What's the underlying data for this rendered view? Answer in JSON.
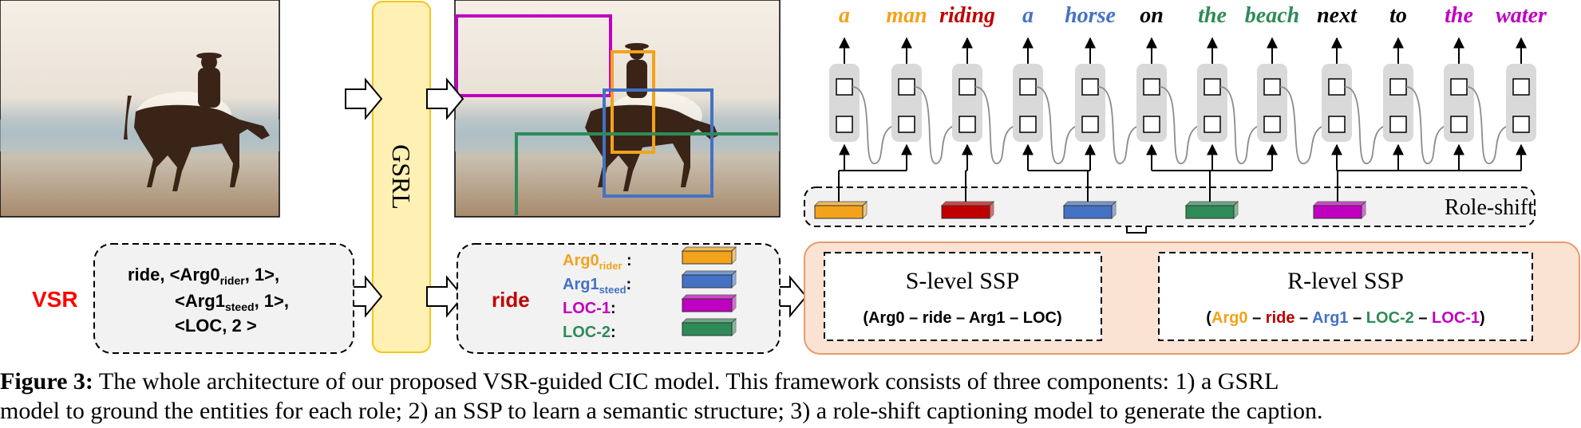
{
  "colors": {
    "arg0": "#f2a31b",
    "ride": "#c00000",
    "arg1": "#4472c4",
    "loc1": "#c000c0",
    "loc2": "#2e8b57",
    "vsr": "#ff0000",
    "gsrl_fill": "#fff0b3",
    "gsrl_border": "#f5c518",
    "ssp_fill": "#fbe3d3",
    "ssp_border": "#e89a6c",
    "cell": "#d9d9d9"
  },
  "vsr": {
    "label": "VSR",
    "line1_verb": "ride",
    "line1_rest": ", <Arg0",
    "line1_sub": "rider",
    "line1_end": ", 1>,",
    "line2_start": "<Arg1",
    "line2_sub": "steed",
    "line2_end": ", 1>,",
    "line3": "<LOC, 2 >"
  },
  "gsrl": {
    "label": "GSRL"
  },
  "roles": {
    "verb": "ride",
    "items": [
      {
        "name": "Arg0",
        "sub": "rider",
        "suffix": " :",
        "color": "#f2a31b"
      },
      {
        "name": "Arg1",
        "sub": "steed",
        "suffix": ":",
        "color": "#4472c4"
      },
      {
        "name": "LOC-1",
        "sub": "",
        "suffix": ":",
        "color": "#c000c0"
      },
      {
        "name": "LOC-2",
        "sub": "",
        "suffix": ":",
        "color": "#2e8b57"
      }
    ]
  },
  "ssp": {
    "s_level_title": "S-level SSP",
    "s_level_seq": "(Arg0 – ride – Arg1 – LOC)",
    "r_level_title": "R-level SSP",
    "r_level_seq": [
      {
        "text": "(",
        "color": "#000000"
      },
      {
        "text": "Arg0",
        "color": "#f2a31b"
      },
      {
        "text": " – ",
        "color": "#000000"
      },
      {
        "text": "ride",
        "color": "#c00000"
      },
      {
        "text": " – ",
        "color": "#000000"
      },
      {
        "text": "Arg1",
        "color": "#4472c4"
      },
      {
        "text": " – ",
        "color": "#000000"
      },
      {
        "text": "LOC-2",
        "color": "#2e8b57"
      },
      {
        "text": " – ",
        "color": "#000000"
      },
      {
        "text": "LOC-1",
        "color": "#c000c0"
      },
      {
        "text": ")",
        "color": "#000000"
      }
    ]
  },
  "role_shift": {
    "label": "Role-shift"
  },
  "caption_words": [
    {
      "text": "a",
      "color": "#f2a31b"
    },
    {
      "text": "man",
      "color": "#f2a31b"
    },
    {
      "text": "riding",
      "color": "#c00000"
    },
    {
      "text": "a",
      "color": "#4472c4"
    },
    {
      "text": "horse",
      "color": "#4472c4"
    },
    {
      "text": "on",
      "color": "#000000"
    },
    {
      "text": "the",
      "color": "#2e8b57"
    },
    {
      "text": "beach",
      "color": "#2e8b57"
    },
    {
      "text": "next",
      "color": "#000000"
    },
    {
      "text": "to",
      "color": "#000000"
    },
    {
      "text": "the",
      "color": "#c000c0"
    },
    {
      "text": "water",
      "color": "#c000c0"
    }
  ],
  "figure_caption": {
    "label": "Figure 3:",
    "line1": " The whole architecture of our proposed VSR-guided CIC model.  This framework consists of three components:  1) a GSRL",
    "line2": "model to ground the entities for each role; 2) an SSP to learn a semantic structure; 3) a role-shift captioning model to generate the caption."
  }
}
